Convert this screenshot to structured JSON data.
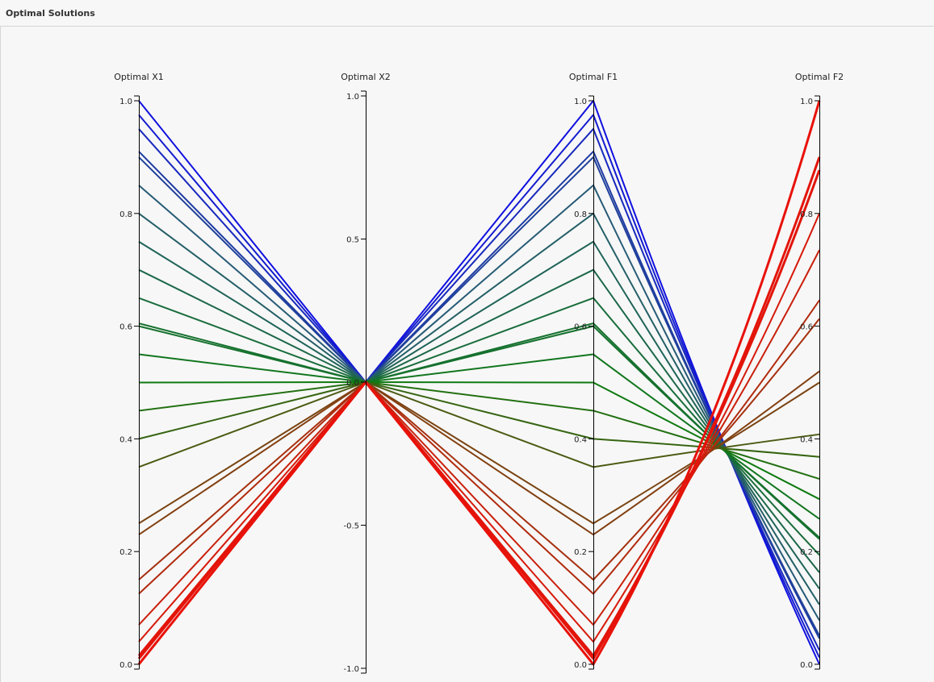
{
  "panel": {
    "title": "Optimal Solutions"
  },
  "chart_data": {
    "type": "parallel-coordinates",
    "axes": [
      {
        "name": "Optimal X1",
        "range": [
          0,
          1
        ],
        "ticks": [
          "0.0",
          "0.2",
          "0.4",
          "0.6",
          "0.8",
          "1.0"
        ],
        "tick_values": [
          0,
          0.2,
          0.4,
          0.6,
          0.8,
          1.0
        ]
      },
      {
        "name": "Optimal X2",
        "range": [
          -1,
          1
        ],
        "ticks": [
          "-1.0",
          "-0.5",
          "0.0",
          "0.5",
          "1.0"
        ],
        "tick_values": [
          -1,
          -0.5,
          0,
          0.5,
          1.0
        ]
      },
      {
        "name": "Optimal F1",
        "range": [
          0,
          1
        ],
        "ticks": [
          "0.0",
          "0.2",
          "0.4",
          "0.6",
          "0.8",
          "1.0"
        ],
        "tick_values": [
          0,
          0.2,
          0.4,
          0.6,
          0.8,
          1.0
        ]
      },
      {
        "name": "Optimal F2",
        "range": [
          0,
          1
        ],
        "ticks": [
          "0.0",
          "0.2",
          "0.4",
          "0.6",
          "0.8",
          "1.0"
        ],
        "tick_values": [
          0,
          0.2,
          0.4,
          0.6,
          0.8,
          1.0
        ]
      }
    ],
    "color_scale": {
      "low": "#e8120a",
      "mid": "#0e7a10",
      "high": "#1010e0"
    },
    "lines": [
      [
        1.0,
        0.0,
        1.0,
        0.0
      ],
      [
        0.975,
        0.0,
        0.975,
        0.012
      ],
      [
        0.95,
        0.0,
        0.95,
        0.025
      ],
      [
        0.91,
        0.0,
        0.91,
        0.046
      ],
      [
        0.9,
        0.0,
        0.9,
        0.051
      ],
      [
        0.85,
        0.0,
        0.85,
        0.078
      ],
      [
        0.8,
        0.0,
        0.8,
        0.106
      ],
      [
        0.75,
        0.0,
        0.75,
        0.134
      ],
      [
        0.7,
        0.0,
        0.7,
        0.163
      ],
      [
        0.65,
        0.0,
        0.65,
        0.194
      ],
      [
        0.605,
        0.0,
        0.605,
        0.222
      ],
      [
        0.6,
        0.0,
        0.6,
        0.225
      ],
      [
        0.55,
        0.0,
        0.55,
        0.258
      ],
      [
        0.5,
        0.0,
        0.5,
        0.293
      ],
      [
        0.45,
        0.0,
        0.45,
        0.329
      ],
      [
        0.4,
        0.0,
        0.4,
        0.368
      ],
      [
        0.35,
        0.0,
        0.35,
        0.408
      ],
      [
        0.25,
        0.0,
        0.25,
        0.5
      ],
      [
        0.23,
        0.0,
        0.23,
        0.52
      ],
      [
        0.15,
        0.0,
        0.15,
        0.613
      ],
      [
        0.125,
        0.0,
        0.125,
        0.646
      ],
      [
        0.07,
        0.0,
        0.07,
        0.735
      ],
      [
        0.04,
        0.0,
        0.04,
        0.8
      ],
      [
        0.015,
        0.0,
        0.015,
        0.877
      ],
      [
        0.01,
        0.0,
        0.01,
        0.9
      ],
      [
        0.0,
        0.0,
        0.0,
        1.0
      ]
    ]
  }
}
